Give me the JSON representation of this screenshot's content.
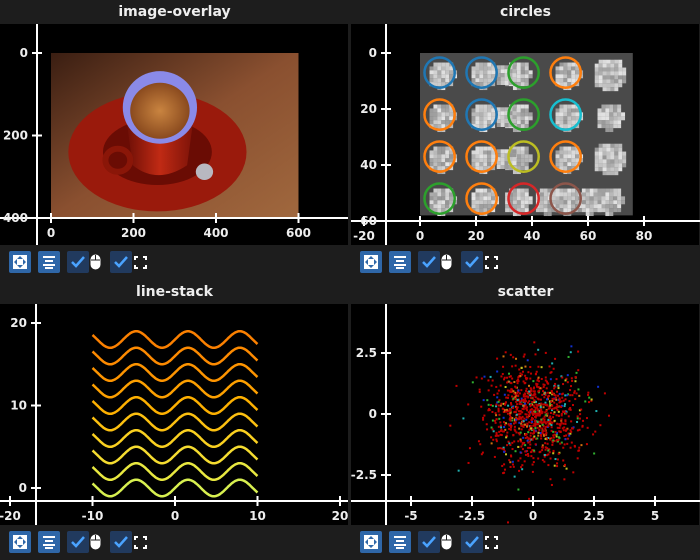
{
  "subplots": [
    {
      "title": "image-overlay",
      "chart_data": {
        "type": "image",
        "image": "espresso cup on red saucer with blue overlay on cup rim",
        "image_shape": [
          400,
          600
        ],
        "xticks": [
          "0",
          "200",
          "400",
          "600"
        ],
        "yticks": [
          "0",
          "200",
          "400"
        ],
        "y_inverted": true
      }
    },
    {
      "title": "circles",
      "chart_data": {
        "type": "image",
        "image": "grayscale grid of blobs with circle overlays",
        "image_shape": [
          58,
          76
        ],
        "xticks": [
          "-20",
          "0",
          "20",
          "40",
          "60",
          "80"
        ],
        "yticks": [
          "0",
          "20",
          "40",
          "60"
        ],
        "y_inverted": true,
        "circles": [
          {
            "x": 7,
            "y": 7,
            "r": 5.4,
            "color": "#1f77b4"
          },
          {
            "x": 22,
            "y": 7,
            "r": 5.4,
            "color": "#1f77b4"
          },
          {
            "x": 37,
            "y": 7,
            "r": 5.4,
            "color": "#2ca02c"
          },
          {
            "x": 52,
            "y": 7,
            "r": 5.4,
            "color": "#ff7f0e"
          },
          {
            "x": 7,
            "y": 22,
            "r": 5.4,
            "color": "#ff7f0e"
          },
          {
            "x": 22,
            "y": 22,
            "r": 5.4,
            "color": "#1f77b4"
          },
          {
            "x": 37,
            "y": 22,
            "r": 5.4,
            "color": "#2ca02c"
          },
          {
            "x": 52,
            "y": 22,
            "r": 5.4,
            "color": "#17becf"
          },
          {
            "x": 7,
            "y": 37,
            "r": 5.4,
            "color": "#ff7f0e"
          },
          {
            "x": 22,
            "y": 37,
            "r": 5.4,
            "color": "#ff7f0e"
          },
          {
            "x": 37,
            "y": 37,
            "r": 5.4,
            "color": "#bcbd22"
          },
          {
            "x": 52,
            "y": 37,
            "r": 5.4,
            "color": "#ff7f0e"
          },
          {
            "x": 7,
            "y": 52,
            "r": 5.4,
            "color": "#2ca02c"
          },
          {
            "x": 22,
            "y": 52,
            "r": 5.4,
            "color": "#ff7f0e"
          },
          {
            "x": 37,
            "y": 52,
            "r": 5.4,
            "color": "#d62728"
          },
          {
            "x": 52,
            "y": 52,
            "r": 5.4,
            "color": "#8c564b"
          }
        ]
      }
    },
    {
      "title": "line-stack",
      "chart_data": {
        "type": "line",
        "function": "sin(x) + offset",
        "x_range": [
          -10,
          10
        ],
        "offsets": [
          0,
          2,
          4,
          6,
          8,
          10,
          12,
          14,
          16,
          18
        ],
        "colors": [
          "#d8f050",
          "#e8e840",
          "#f5dc30",
          "#fad020",
          "#fcc010",
          "#fdb000",
          "#fda000",
          "#fd9400",
          "#fd8a00",
          "#fb8000"
        ],
        "xticks": [
          "-20",
          "-10",
          "0",
          "10",
          "20"
        ],
        "yticks": [
          "0",
          "10",
          "20"
        ]
      }
    },
    {
      "title": "scatter",
      "chart_data": {
        "type": "scatter",
        "distribution": "gaussian",
        "mean": [
          0,
          0
        ],
        "std": 1,
        "colors": [
          "#c00000",
          "#1030d0",
          "#30b030",
          "#20b0b0",
          "#c0c020",
          "#d07010"
        ],
        "dominant_color": "#c00000",
        "xticks": [
          "-5",
          "-2.5",
          "0",
          "2.5",
          "5"
        ],
        "yticks": [
          "-2.5",
          "0",
          "2.5"
        ]
      }
    }
  ],
  "toolbar": {
    "buttons": [
      "auto-scale",
      "center",
      "maintain-aspect",
      "panzoom-controller",
      "fullscreen"
    ],
    "maintain_aspect_checked": true,
    "panzoom_checked": true
  },
  "colors": {
    "background": "#1d1d1d",
    "plot_bg": "#000000",
    "button": "#2f67a8",
    "checkbox": "#213a5e",
    "check": "#4aa3ff"
  }
}
